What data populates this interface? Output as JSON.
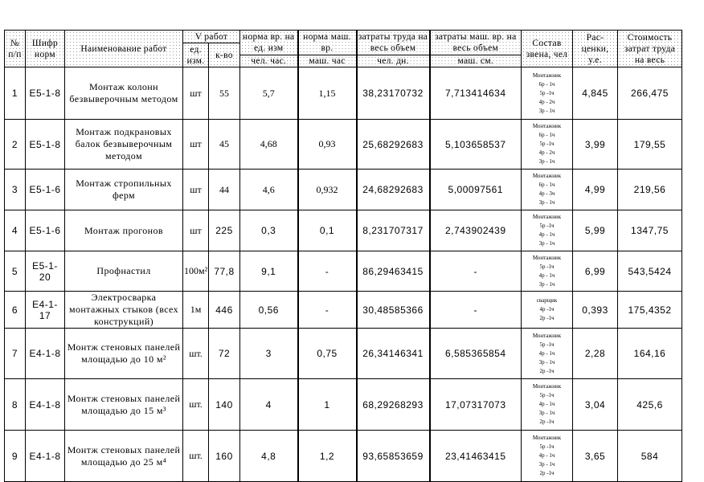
{
  "header": {
    "num": "№ п/п",
    "code": "Шифр норм",
    "name": "Наименование работ",
    "volume": "V работ",
    "unit": "ед. изм.",
    "qty": "к-во",
    "norm_time": "норма вр. на ед. изм",
    "norm_time_unit": "чел. час.",
    "norm_mach": "норма маш. вр.",
    "norm_mach_unit": "маш. час",
    "labor": "затраты труда на весь объем",
    "labor_unit": "чел. дн.",
    "mach": "затраты маш. вр. на весь объем",
    "mach_unit": "маш. см.",
    "crew": "Состав звена, чел",
    "rate": "Рас-ценки, у.е.",
    "cost": "Стоимость затрат труда на весь"
  },
  "rows": [
    {
      "num": "1",
      "code": "Е5-1-8",
      "name": "Монтаж колонн безвыверочным методом",
      "unit": "шт",
      "qty": "55",
      "norm_time": "5,7",
      "norm_mach": "1,15",
      "labor": "38,23170732",
      "mach": "7,713414634",
      "crew": [
        "Монтажник",
        "6р - 1ч",
        "5р -1ч",
        "4р - 2ч",
        "3р - 1ч"
      ],
      "rate": "4,845",
      "cost": "266,475"
    },
    {
      "num": "2",
      "code": "Е5-1-8",
      "name": "Монтаж подкрановых балок безвыверочным методом",
      "unit": "шт",
      "qty": "45",
      "norm_time": "4,68",
      "norm_mach": "0,93",
      "labor": "25,68292683",
      "mach": "5,103658537",
      "crew": [
        "Монтажник",
        "6р - 1ч",
        "5р -1ч",
        "4р - 2ч",
        "3р - 1ч"
      ],
      "rate": "3,99",
      "cost": "179,55"
    },
    {
      "num": "3",
      "code": "Е5-1-6",
      "name": "Монтаж стропильных ферм",
      "unit": "шт",
      "qty": "44",
      "norm_time": "4,6",
      "norm_mach": "0,932",
      "labor": "24,68292683",
      "mach": "5,00097561",
      "crew": [
        "Монтажник",
        "6р - 1ч",
        "4р - 3ч",
        "3р - 1ч"
      ],
      "rate": "4,99",
      "cost": "219,56"
    },
    {
      "num": "4",
      "code": "Е5-1-6",
      "name": "Монтаж прогонов",
      "unit": "шт",
      "qty": "225",
      "norm_time": "0,3",
      "norm_mach": "0,1",
      "labor": "8,231707317",
      "mach": "2,743902439",
      "crew": [
        "Монтажник",
        "5р -1ч",
        "4р - 1ч",
        "3р - 1ч"
      ],
      "rate": "5,99",
      "cost": "1347,75"
    },
    {
      "num": "5",
      "code": "Е5-1-20",
      "name": "Профнастил",
      "unit": "100м²",
      "qty": "77,8",
      "norm_time": "9,1",
      "norm_mach": "-",
      "labor": "86,29463415",
      "mach": "-",
      "crew": [
        "Монтажник",
        "5р -1ч",
        "4р - 1ч",
        "3р - 1ч"
      ],
      "rate": "6,99",
      "cost": "543,5424"
    },
    {
      "num": "6",
      "code": "Е4-1-17",
      "name": "Электросварка монтажных стыков (всех конструкций)",
      "unit": "1м",
      "qty": "446",
      "norm_time": "0,56",
      "norm_mach": "-",
      "labor": "30,48585366",
      "mach": "-",
      "crew": [
        "сварщик",
        "4р -1ч",
        "2р -1ч"
      ],
      "rate": "0,393",
      "cost": "175,4352"
    },
    {
      "num": "7",
      "code": "Е4-1-8",
      "name": "Монтж стеновых панелей млощадью до 10 м²",
      "unit": "шт.",
      "qty": "72",
      "norm_time": "3",
      "norm_mach": "0,75",
      "labor": "26,34146341",
      "mach": "6,585365854",
      "crew": [
        "Монтажник",
        "5р -1ч",
        "4р - 1ч",
        "3р - 1ч",
        "2р -1ч"
      ],
      "rate": "2,28",
      "cost": "164,16"
    },
    {
      "num": "8",
      "code": "Е4-1-8",
      "name": "Монтж стеновых панелей млощадью до 15 м³",
      "unit": "шт.",
      "qty": "140",
      "norm_time": "4",
      "norm_mach": "1",
      "labor": "68,29268293",
      "mach": "17,07317073",
      "crew": [
        "Монтажник",
        "5р -1ч",
        "4р - 1ч",
        "3р - 1ч",
        "2р -1ч"
      ],
      "rate": "3,04",
      "cost": "425,6"
    },
    {
      "num": "9",
      "code": "Е4-1-8",
      "name": "Монтж стеновых панелей млощадью до 25 м⁴",
      "unit": "шт.",
      "qty": "160",
      "norm_time": "4,8",
      "norm_mach": "1,2",
      "labor": "93,65853659",
      "mach": "23,41463415",
      "crew": [
        "Монтажник",
        "5р -1ч",
        "4р - 1ч",
        "3р - 1ч",
        "2р -1ч"
      ],
      "rate": "3,65",
      "cost": "584"
    }
  ]
}
